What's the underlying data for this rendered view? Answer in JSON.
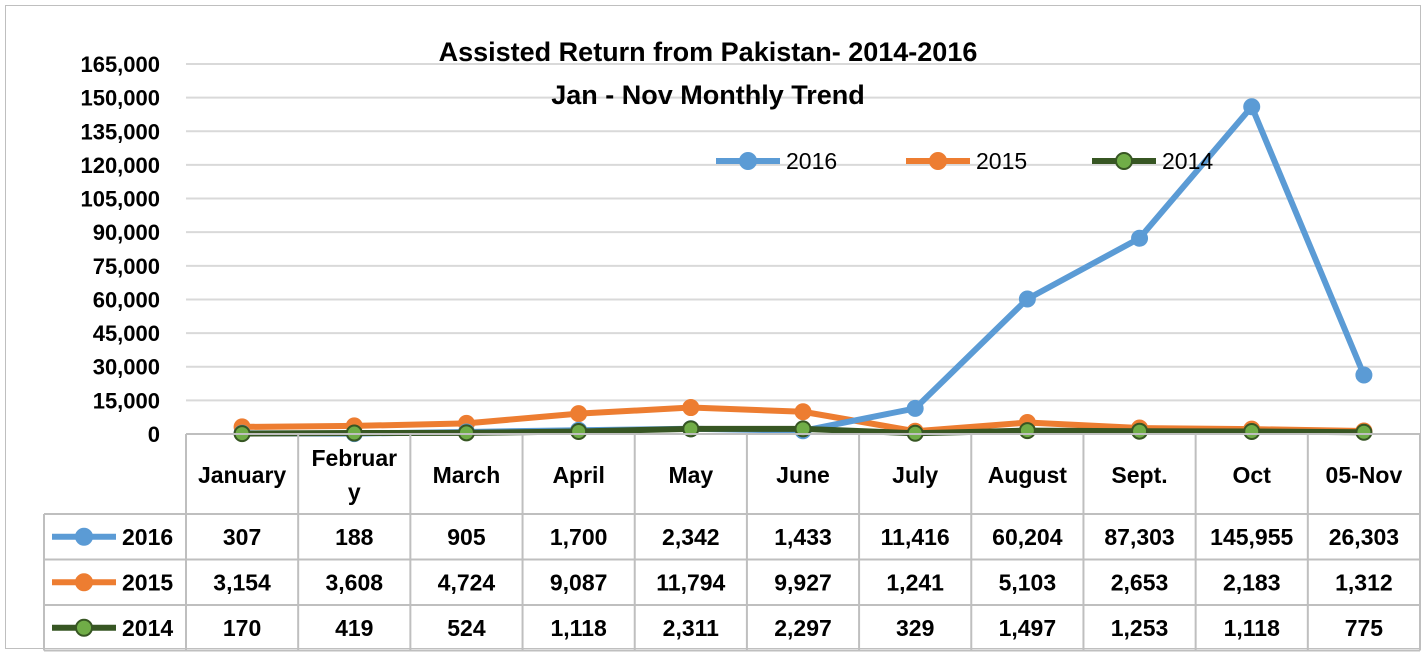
{
  "chart_data": {
    "type": "line",
    "title": "Assisted Return from Pakistan- 2014-2016",
    "subtitle": "Jan - Nov Monthly Trend",
    "categories": [
      "January",
      "February",
      "March",
      "April",
      "May",
      "June",
      "July",
      "August",
      "Sept.",
      "Oct",
      "05-Nov"
    ],
    "series": [
      {
        "name": "2016",
        "color": "#5b9bd5",
        "marker": "circle",
        "values": [
          307,
          188,
          905,
          1700,
          2342,
          1433,
          11416,
          60204,
          87303,
          145955,
          26303
        ],
        "labels": [
          "307",
          "188",
          "905",
          "1,700",
          "2,342",
          "1,433",
          "11,416",
          "60,204",
          "87,303",
          "145,955",
          "26,303"
        ]
      },
      {
        "name": "2015",
        "color": "#ed7d31",
        "marker": "circle",
        "values": [
          3154,
          3608,
          4724,
          9087,
          11794,
          9927,
          1241,
          5103,
          2653,
          2183,
          1312
        ],
        "labels": [
          "3,154",
          "3,608",
          "4,724",
          "9,087",
          "11,794",
          "9,927",
          "1,241",
          "5,103",
          "2,653",
          "2,183",
          "1,312"
        ]
      },
      {
        "name": "2014",
        "color": "#375623",
        "marker_fill": "#70ad47",
        "marker": "circle",
        "values": [
          170,
          419,
          524,
          1118,
          2311,
          2297,
          329,
          1497,
          1253,
          1118,
          775
        ],
        "labels": [
          "170",
          "419",
          "524",
          "1,118",
          "2,311",
          "2,297",
          "329",
          "1,497",
          "1,253",
          "1,118",
          "775"
        ]
      }
    ],
    "ylim": [
      0,
      165000
    ],
    "yticks": [
      0,
      15000,
      30000,
      45000,
      60000,
      75000,
      90000,
      105000,
      120000,
      135000,
      150000,
      165000
    ],
    "ytick_labels": [
      "0",
      "15,000",
      "30,000",
      "45,000",
      "60,000",
      "75,000",
      "90,000",
      "105,000",
      "120,000",
      "135,000",
      "150,000",
      "165,000"
    ],
    "grid": true,
    "legend": "top-right",
    "data_table": true
  }
}
